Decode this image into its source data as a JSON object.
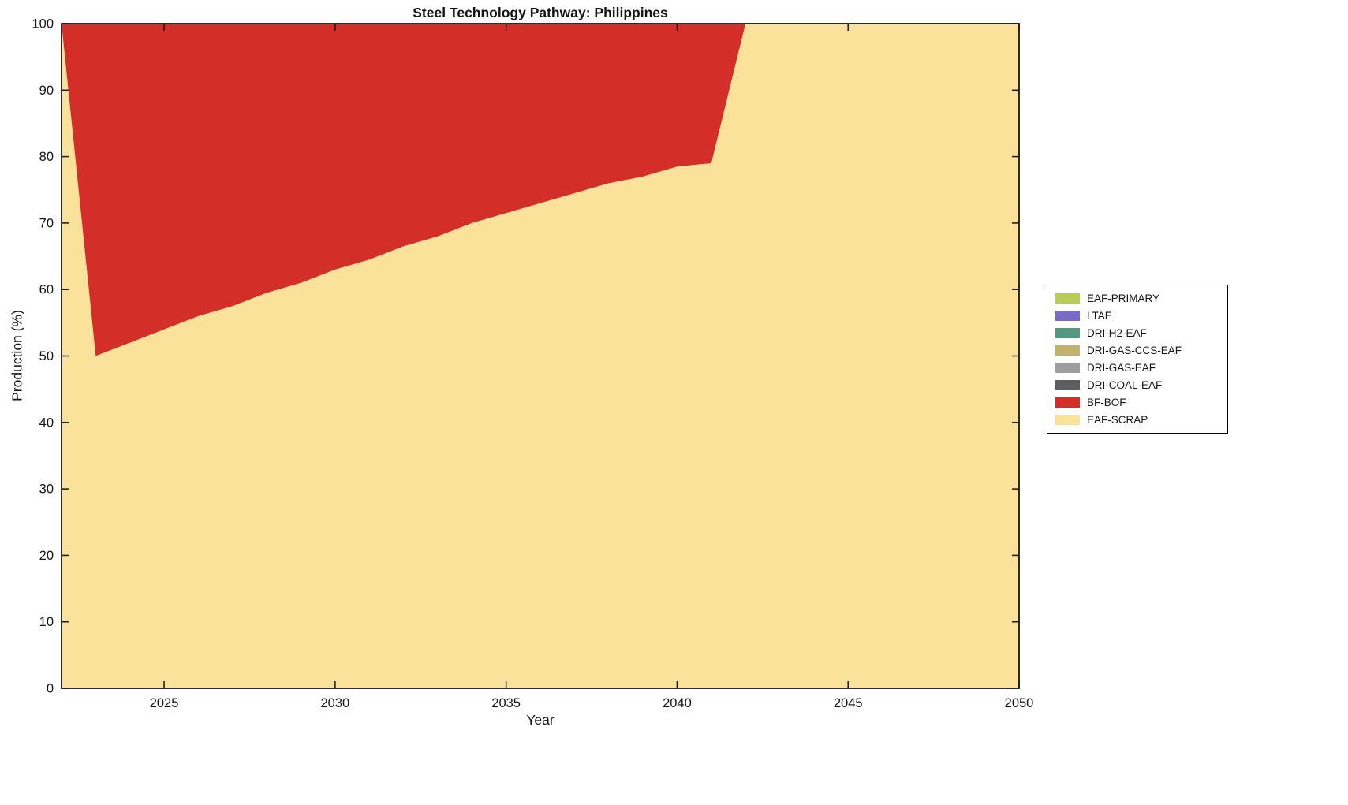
{
  "chart_data": {
    "type": "area",
    "stacked": true,
    "title": "Steel Technology Pathway: Philippines",
    "xlabel": "Year",
    "ylabel": "Production (%)",
    "xlim": [
      2022,
      2050
    ],
    "ylim": [
      0,
      100
    ],
    "xticks": [
      2025,
      2030,
      2035,
      2040,
      2045,
      2050
    ],
    "yticks": [
      0,
      10,
      20,
      30,
      40,
      50,
      60,
      70,
      80,
      90,
      100
    ],
    "grid": false,
    "legend_position": "right-outside",
    "x": [
      2022,
      2023,
      2024,
      2025,
      2026,
      2027,
      2028,
      2029,
      2030,
      2031,
      2032,
      2033,
      2034,
      2035,
      2036,
      2037,
      2038,
      2039,
      2040,
      2041,
      2042,
      2043,
      2044,
      2045,
      2046,
      2047,
      2048,
      2049,
      2050
    ],
    "series": [
      {
        "name": "EAF-SCRAP",
        "color": "#FAE29B",
        "values": [
          100,
          50,
          52,
          54,
          56,
          57.5,
          59.5,
          61,
          63,
          64.5,
          66.5,
          68,
          70,
          71.5,
          73,
          74.5,
          76,
          77,
          78.5,
          79,
          100,
          100,
          100,
          100,
          100,
          100,
          100,
          100,
          100
        ]
      },
      {
        "name": "BF-BOF",
        "color": "#D32E27",
        "values": [
          0,
          50,
          48,
          46,
          44,
          42.5,
          40.5,
          39,
          37,
          35.5,
          33.5,
          32,
          30,
          28.5,
          27,
          25.5,
          24,
          23,
          21.5,
          21,
          0,
          0,
          0,
          0,
          0,
          0,
          0,
          0,
          0
        ]
      },
      {
        "name": "DRI-COAL-EAF",
        "color": "#5D5E60",
        "values": [
          0,
          0,
          0,
          0,
          0,
          0,
          0,
          0,
          0,
          0,
          0,
          0,
          0,
          0,
          0,
          0,
          0,
          0,
          0,
          0,
          0,
          0,
          0,
          0,
          0,
          0,
          0,
          0,
          0
        ]
      },
      {
        "name": "DRI-GAS-EAF",
        "color": "#9E9E9E",
        "values": [
          0,
          0,
          0,
          0,
          0,
          0,
          0,
          0,
          0,
          0,
          0,
          0,
          0,
          0,
          0,
          0,
          0,
          0,
          0,
          0,
          0,
          0,
          0,
          0,
          0,
          0,
          0,
          0,
          0
        ]
      },
      {
        "name": "DRI-GAS-CCS-EAF",
        "color": "#C0B46C",
        "values": [
          0,
          0,
          0,
          0,
          0,
          0,
          0,
          0,
          0,
          0,
          0,
          0,
          0,
          0,
          0,
          0,
          0,
          0,
          0,
          0,
          0,
          0,
          0,
          0,
          0,
          0,
          0,
          0,
          0
        ]
      },
      {
        "name": "DRI-H2-EAF",
        "color": "#52997F",
        "values": [
          0,
          0,
          0,
          0,
          0,
          0,
          0,
          0,
          0,
          0,
          0,
          0,
          0,
          0,
          0,
          0,
          0,
          0,
          0,
          0,
          0,
          0,
          0,
          0,
          0,
          0,
          0,
          0,
          0
        ]
      },
      {
        "name": "LTAE",
        "color": "#7A6BC9",
        "values": [
          0,
          0,
          0,
          0,
          0,
          0,
          0,
          0,
          0,
          0,
          0,
          0,
          0,
          0,
          0,
          0,
          0,
          0,
          0,
          0,
          0,
          0,
          0,
          0,
          0,
          0,
          0,
          0,
          0
        ]
      },
      {
        "name": "EAF-PRIMARY",
        "color": "#B9CC56",
        "values": [
          0,
          0,
          0,
          0,
          0,
          0,
          0,
          0,
          0,
          0,
          0,
          0,
          0,
          0,
          0,
          0,
          0,
          0,
          0,
          0,
          0,
          0,
          0,
          0,
          0,
          0,
          0,
          0,
          0
        ]
      }
    ],
    "legend": [
      "EAF-PRIMARY",
      "LTAE",
      "DRI-H2-EAF",
      "DRI-GAS-CCS-EAF",
      "DRI-GAS-EAF",
      "DRI-COAL-EAF",
      "BF-BOF",
      "EAF-SCRAP"
    ]
  }
}
